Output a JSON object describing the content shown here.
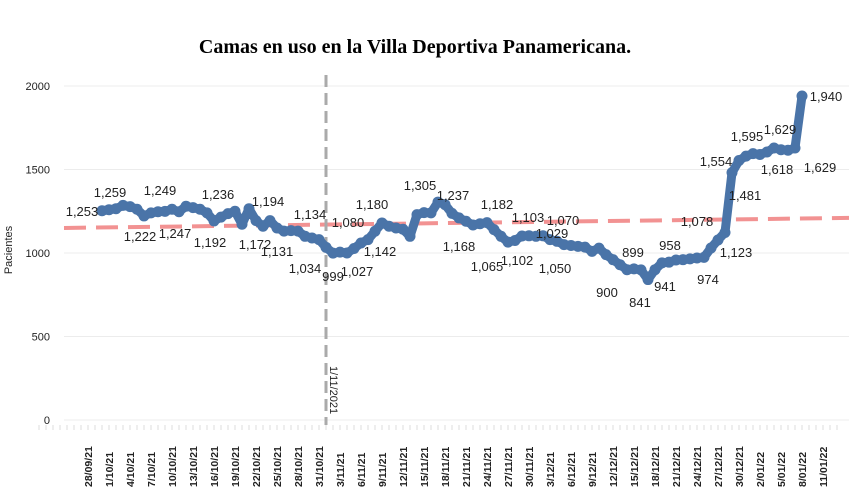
{
  "chart_data": {
    "type": "line",
    "title": "Camas en uso en la Villa Deportiva Panamericana.",
    "xlabel": "",
    "ylabel": "Pacientes",
    "ylim": [
      0,
      2000
    ],
    "yticks": [
      0,
      500,
      1000,
      1500,
      2000
    ],
    "xlim": [
      "28/09/21",
      "11/01/22"
    ],
    "xticks": [
      "28/09/21",
      "1/10/21",
      "4/10/21",
      "7/10/21",
      "10/10/21",
      "13/10/21",
      "16/10/21",
      "19/10/21",
      "22/10/21",
      "25/10/21",
      "28/10/21",
      "31/10/21",
      "3/11/21",
      "6/11/21",
      "9/11/21",
      "12/11/21",
      "15/11/21",
      "18/11/21",
      "21/11/21",
      "24/11/21",
      "27/11/21",
      "30/11/21",
      "3/12/21",
      "6/12/21",
      "9/12/21",
      "12/12/21",
      "15/12/21",
      "18/12/21",
      "21/12/21",
      "24/12/21",
      "27/12/21",
      "30/12/21",
      "2/01/22",
      "5/01/22",
      "8/01/22",
      "11/01/22"
    ],
    "grid": true,
    "series_color": "#4a74a8",
    "trend_color": "#f08080",
    "marker_color": "#aaaaaa",
    "vertical_marker": {
      "date": "1/11/21",
      "label": "1/11/2021"
    },
    "trend": {
      "start": 1150,
      "end": 1210
    },
    "points": [
      [
        "30/09/21",
        1253
      ],
      [
        "1/10/21",
        1259
      ],
      [
        "2/10/21",
        1265
      ],
      [
        "3/10/21",
        1285
      ],
      [
        "4/10/21",
        1278
      ],
      [
        "5/10/21",
        1262
      ],
      [
        "6/10/21",
        1222
      ],
      [
        "7/10/21",
        1240
      ],
      [
        "8/10/21",
        1247
      ],
      [
        "9/10/21",
        1249
      ],
      [
        "10/10/21",
        1262
      ],
      [
        "11/10/21",
        1247
      ],
      [
        "12/10/21",
        1280
      ],
      [
        "13/10/21",
        1272
      ],
      [
        "14/10/21",
        1262
      ],
      [
        "15/10/21",
        1240
      ],
      [
        "16/10/21",
        1192
      ],
      [
        "17/10/21",
        1215
      ],
      [
        "18/10/21",
        1236
      ],
      [
        "19/10/21",
        1250
      ],
      [
        "20/10/21",
        1172
      ],
      [
        "21/10/21",
        1265
      ],
      [
        "22/10/21",
        1194
      ],
      [
        "23/10/21",
        1160
      ],
      [
        "24/10/21",
        1194
      ],
      [
        "25/10/21",
        1150
      ],
      [
        "26/10/21",
        1131
      ],
      [
        "27/10/21",
        1134
      ],
      [
        "28/10/21",
        1131
      ],
      [
        "29/10/21",
        1100
      ],
      [
        "30/10/21",
        1090
      ],
      [
        "31/10/21",
        1080
      ],
      [
        "1/11/21",
        1034
      ],
      [
        "2/11/21",
        999
      ],
      [
        "3/11/21",
        1005
      ],
      [
        "4/11/21",
        1000
      ],
      [
        "5/11/21",
        1027
      ],
      [
        "6/11/21",
        1060
      ],
      [
        "7/11/21",
        1080
      ],
      [
        "8/11/21",
        1130
      ],
      [
        "9/11/21",
        1180
      ],
      [
        "10/11/21",
        1160
      ],
      [
        "11/11/21",
        1150
      ],
      [
        "12/11/21",
        1142
      ],
      [
        "13/11/21",
        1100
      ],
      [
        "14/11/21",
        1230
      ],
      [
        "15/11/21",
        1242
      ],
      [
        "16/11/21",
        1240
      ],
      [
        "17/11/21",
        1305
      ],
      [
        "18/11/21",
        1290
      ],
      [
        "19/11/21",
        1237
      ],
      [
        "20/11/21",
        1210
      ],
      [
        "21/11/21",
        1190
      ],
      [
        "22/11/21",
        1168
      ],
      [
        "23/11/21",
        1175
      ],
      [
        "24/11/21",
        1182
      ],
      [
        "25/11/21",
        1140
      ],
      [
        "26/11/21",
        1100
      ],
      [
        "27/11/21",
        1065
      ],
      [
        "28/11/21",
        1075
      ],
      [
        "29/11/21",
        1102
      ],
      [
        "30/11/21",
        1103
      ],
      [
        "1/12/21",
        1100
      ],
      [
        "2/12/21",
        1103
      ],
      [
        "3/12/21",
        1080
      ],
      [
        "4/12/21",
        1070
      ],
      [
        "5/12/21",
        1050
      ],
      [
        "6/12/21",
        1045
      ],
      [
        "7/12/21",
        1040
      ],
      [
        "8/12/21",
        1035
      ],
      [
        "9/12/21",
        1010
      ],
      [
        "10/12/21",
        1029
      ],
      [
        "11/12/21",
        990
      ],
      [
        "12/12/21",
        960
      ],
      [
        "13/12/21",
        930
      ],
      [
        "14/12/21",
        900
      ],
      [
        "15/12/21",
        905
      ],
      [
        "16/12/21",
        899
      ],
      [
        "17/12/21",
        841
      ],
      [
        "18/12/21",
        900
      ],
      [
        "19/12/21",
        941
      ],
      [
        "20/12/21",
        945
      ],
      [
        "21/12/21",
        958
      ],
      [
        "22/12/21",
        960
      ],
      [
        "23/12/21",
        965
      ],
      [
        "24/12/21",
        970
      ],
      [
        "25/12/21",
        974
      ],
      [
        "26/12/21",
        1030
      ],
      [
        "27/12/21",
        1078
      ],
      [
        "28/12/21",
        1123
      ],
      [
        "29/12/21",
        1481
      ],
      [
        "30/12/21",
        1554
      ],
      [
        "31/12/21",
        1580
      ],
      [
        "1/01/22",
        1595
      ],
      [
        "2/01/22",
        1590
      ],
      [
        "3/01/22",
        1605
      ],
      [
        "4/01/22",
        1629
      ],
      [
        "5/01/22",
        1618
      ],
      [
        "6/01/22",
        1615
      ],
      [
        "7/01/22",
        1629
      ],
      [
        "8/01/22",
        1940
      ]
    ],
    "data_labels": [
      "1,253",
      "1,259",
      "1,222",
      "1,247",
      "1,249",
      "1,236",
      "1,192",
      "1,172",
      "1,194",
      "1,131",
      "1,134",
      "1,034",
      "999",
      "1,080",
      "1,027",
      "1,180",
      "1,142",
      "1,305",
      "1,237",
      "1,168",
      "1,182",
      "1,065",
      "1,102",
      "1,103",
      "1,050",
      "1,070",
      "1,029",
      "900",
      "899",
      "841",
      "941",
      "958",
      "974",
      "1,078",
      "1,123",
      "1,481",
      "1,554",
      "1,595",
      "1,629",
      "1,618",
      "1,629",
      "1,940"
    ]
  }
}
